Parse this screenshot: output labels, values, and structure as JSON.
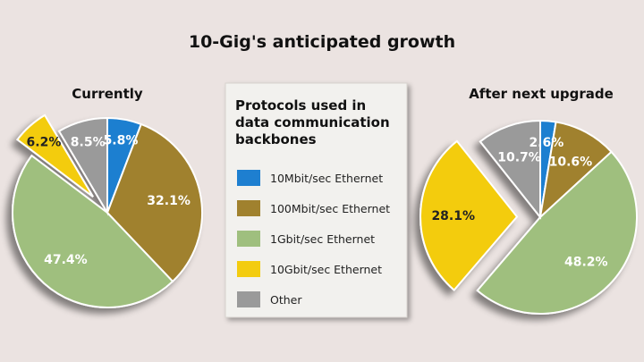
{
  "title": "10-Gig's anticipated growth",
  "legend": {
    "title_lines": [
      "Protocols used in",
      "data communication",
      "backbones"
    ],
    "items": [
      {
        "label": "10Mbit/sec Ethernet",
        "color": "#1e7fd0"
      },
      {
        "label": "100Mbit/sec Ethernet",
        "color": "#a0812e"
      },
      {
        "label": "1Gbit/sec Ethernet",
        "color": "#9fbf7e"
      },
      {
        "label": "10Gbit/sec Ethernet",
        "color": "#f3cc10"
      },
      {
        "label": "Other",
        "color": "#9a9a9a"
      }
    ]
  },
  "chart_data": [
    {
      "type": "pie",
      "title": "Currently",
      "exploded": "10Gbit/sec Ethernet",
      "slices": [
        {
          "category": "10Mbit/sec Ethernet",
          "value": 5.8,
          "label": "5.8%"
        },
        {
          "category": "100Mbit/sec Ethernet",
          "value": 32.1,
          "label": "32.1%"
        },
        {
          "category": "1Gbit/sec Ethernet",
          "value": 47.4,
          "label": "47.4%"
        },
        {
          "category": "10Gbit/sec Ethernet",
          "value": 6.2,
          "label": "6.2%"
        },
        {
          "category": "Other",
          "value": 8.5,
          "label": "8.5%"
        }
      ]
    },
    {
      "type": "pie",
      "title": "After next upgrade",
      "exploded": "10Gbit/sec Ethernet",
      "slices": [
        {
          "category": "10Mbit/sec Ethernet",
          "value": 2.6,
          "label": "2.6%"
        },
        {
          "category": "100Mbit/sec Ethernet",
          "value": 10.6,
          "label": "10.6%"
        },
        {
          "category": "1Gbit/sec Ethernet",
          "value": 48.2,
          "label": "48.2%"
        },
        {
          "category": "10Gbit/sec Ethernet",
          "value": 28.1,
          "label": "28.1%"
        },
        {
          "category": "Other",
          "value": 10.7,
          "label": "10.7%"
        }
      ]
    }
  ]
}
